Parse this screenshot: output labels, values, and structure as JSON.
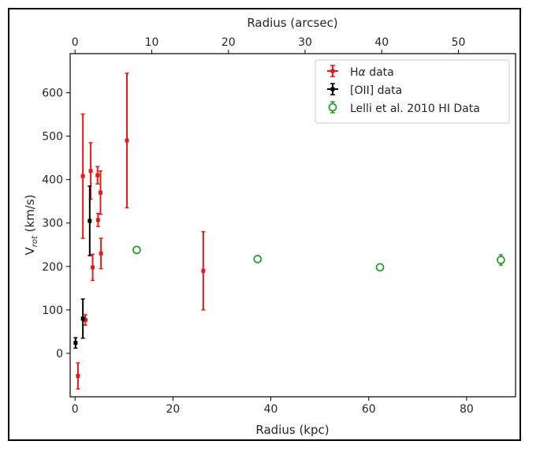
{
  "chart_data": {
    "type": "scatter",
    "title": "",
    "xlabel": "Radius (kpc)",
    "ylabel": "V_rot (km/s)",
    "ylabel_main": "V",
    "ylabel_sub": "rot",
    "ylabel_unit": " (km/s)",
    "top_xlabel": "Radius (arcsec)",
    "xlim": [
      -1,
      90
    ],
    "ylim": [
      -100,
      690
    ],
    "top_xlim": [
      -0.64,
      57.45
    ],
    "xticks": [
      0,
      20,
      40,
      60,
      80
    ],
    "yticks": [
      0,
      100,
      200,
      300,
      400,
      500,
      600
    ],
    "top_xticks": [
      0,
      10,
      20,
      30,
      40,
      50
    ],
    "grid": false,
    "legend_position": "top-right",
    "series": [
      {
        "name": "Hα data",
        "name_main": "H",
        "name_greek": "α",
        "name_rest": " data",
        "color": "#e41a1c",
        "marker": "square",
        "points": [
          {
            "x": 0.6,
            "y": -52,
            "yerr": 30,
            "xerr": 0.3
          },
          {
            "x": 1.6,
            "y": 408,
            "yerr": 143,
            "xerr": 0.3
          },
          {
            "x": 2.1,
            "y": 77,
            "yerr": 12,
            "xerr": 0.5
          },
          {
            "x": 3.2,
            "y": 420,
            "yerr": 65,
            "xerr": 0.3
          },
          {
            "x": 3.6,
            "y": 198,
            "yerr": 30,
            "xerr": 0.3
          },
          {
            "x": 4.6,
            "y": 410,
            "yerr": 20,
            "xerr": 0.3
          },
          {
            "x": 4.7,
            "y": 307,
            "yerr": 15,
            "xerr": 0.3
          },
          {
            "x": 5.2,
            "y": 370,
            "yerr": 50,
            "xerr": 0.3
          },
          {
            "x": 5.3,
            "y": 230,
            "yerr": 35,
            "xerr": 0.3
          },
          {
            "x": 10.6,
            "y": 490,
            "yerr": 155,
            "xerr": 0.3
          },
          {
            "x": 26.2,
            "y": 190,
            "yerr": 90,
            "xerr": 0.3
          }
        ]
      },
      {
        "name": "[OII] data",
        "color": "#000000",
        "marker": "square",
        "points": [
          {
            "x": 0.1,
            "y": 24,
            "yerr": 12,
            "xerr": 0.3
          },
          {
            "x": 1.6,
            "y": 80,
            "yerr": 45,
            "xerr": 0.3
          },
          {
            "x": 3.0,
            "y": 305,
            "yerr": 80,
            "xerr": 0.3
          }
        ]
      },
      {
        "name": "Lelli et al. 2010 HI Data",
        "color": "#2ca02c",
        "marker": "open-circle",
        "points": [
          {
            "x": 12.6,
            "y": 238,
            "yerr": 8,
            "xerr": 0
          },
          {
            "x": 37.3,
            "y": 217,
            "yerr": 6,
            "xerr": 0
          },
          {
            "x": 62.3,
            "y": 198,
            "yerr": 6,
            "xerr": 0
          },
          {
            "x": 87.0,
            "y": 215,
            "yerr": 12,
            "xerr": 0
          }
        ]
      }
    ]
  }
}
